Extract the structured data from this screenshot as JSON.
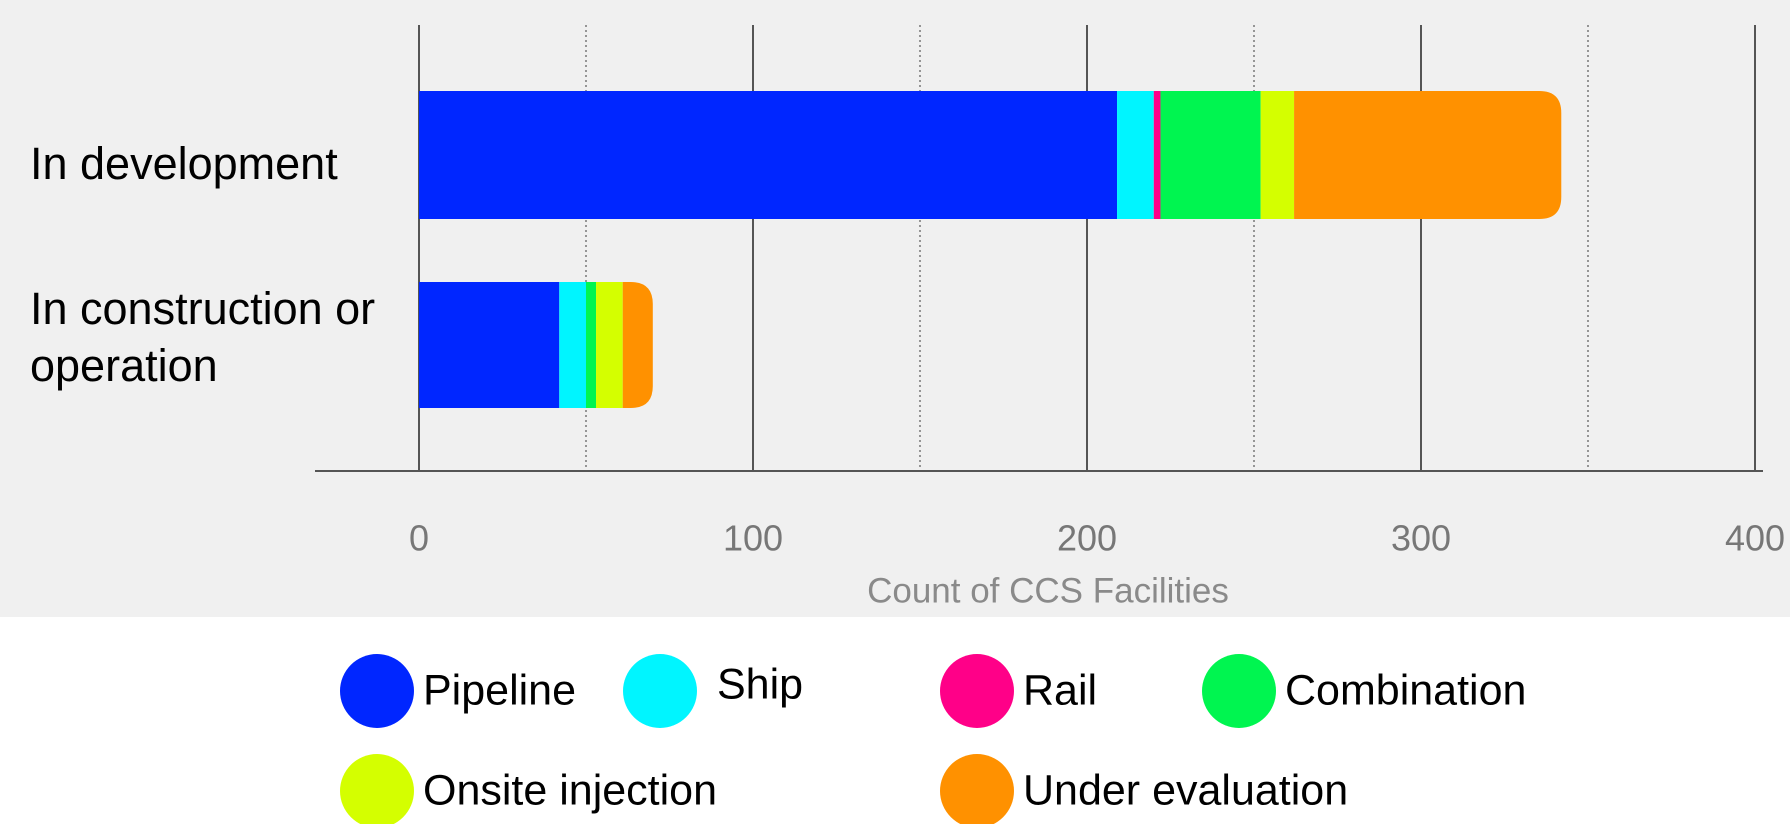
{
  "chart_data": {
    "type": "stacked_bar_horizontal",
    "categories": [
      "In development",
      "In construction or operation"
    ],
    "series": [
      {
        "name": "Pipeline",
        "color": "#0026ff",
        "values": [
          209,
          42
        ]
      },
      {
        "name": "Ship",
        "color": "#00f5ff",
        "values": [
          11,
          8
        ]
      },
      {
        "name": "Rail",
        "color": "#ff0088",
        "values": [
          2,
          0
        ]
      },
      {
        "name": "Combination",
        "color": "#00f550",
        "values": [
          30,
          3
        ]
      },
      {
        "name": "Onsite injection",
        "color": "#d4ff00",
        "values": [
          10,
          8
        ]
      },
      {
        "name": "Under evaluation",
        "color": "#ff9100",
        "values": [
          80,
          9
        ]
      }
    ],
    "xlim": [
      0,
      400
    ],
    "xticks": [
      0,
      100,
      200,
      300,
      400
    ],
    "minor_xticks": [
      50,
      150,
      250,
      350
    ],
    "x_label": "Count of CCS Facilities",
    "grid": true,
    "legend": "bottom"
  }
}
